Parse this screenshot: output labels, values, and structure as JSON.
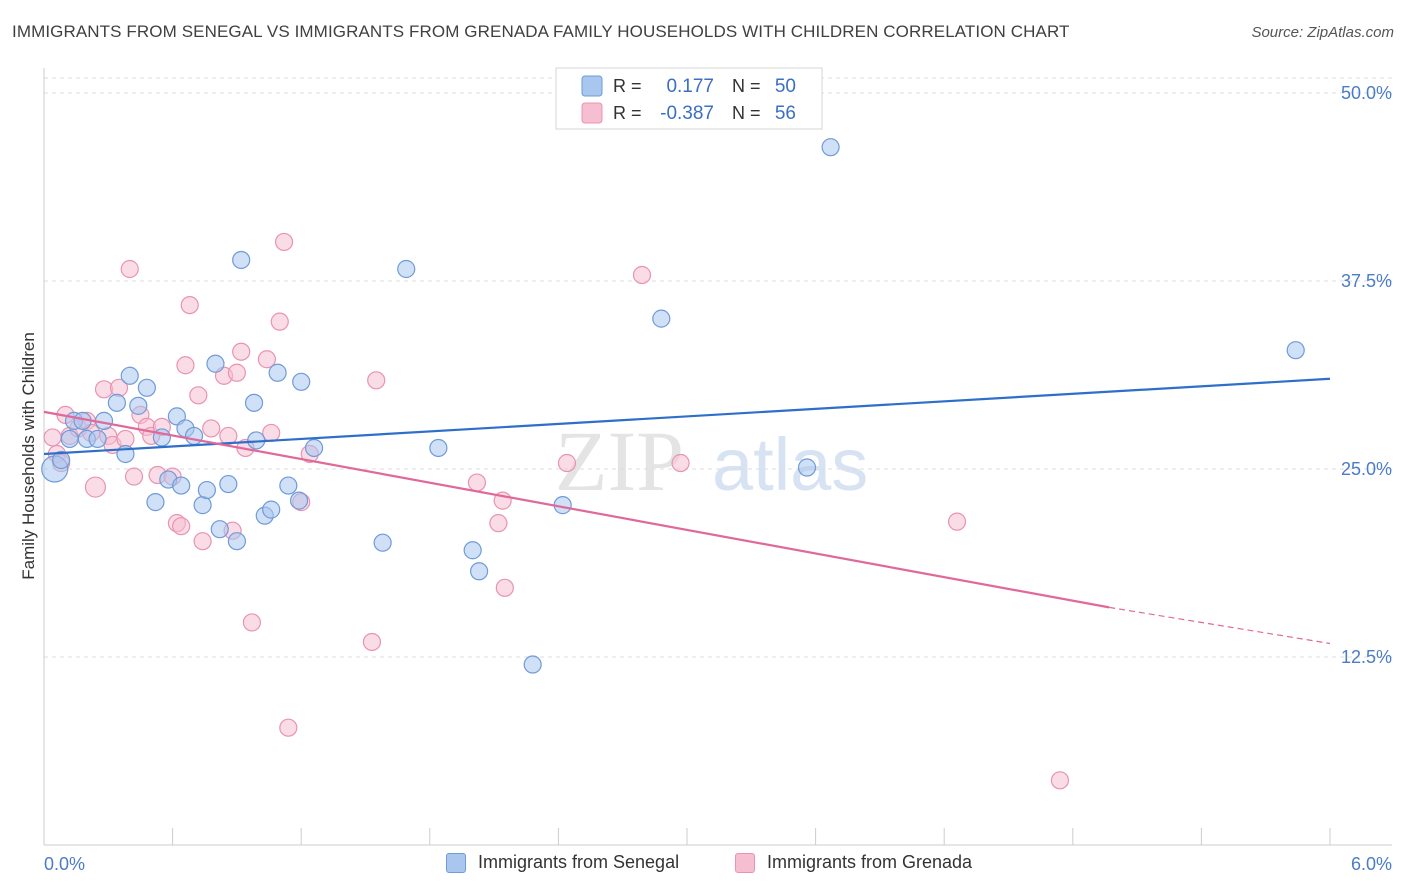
{
  "header": {
    "title": "IMMIGRANTS FROM SENEGAL VS IMMIGRANTS FROM GRENADA FAMILY HOUSEHOLDS WITH CHILDREN CORRELATION CHART",
    "source": "Source: ZipAtlas.com"
  },
  "colors": {
    "senegal_fill": "#a9c6ee",
    "senegal_stroke": "#6f9bd8",
    "senegal_line": "#2e6fc9",
    "grenada_fill": "#f6bfd1",
    "grenada_stroke": "#e993b1",
    "grenada_line": "#e0699a",
    "tick_label": "#4a7cc7",
    "grid": "#dddddd"
  },
  "legend": {
    "rows": [
      {
        "r_label": "R =",
        "r_value": "0.177",
        "n_label": "N =",
        "n_value": "50"
      },
      {
        "r_label": "R =",
        "r_value": "-0.387",
        "n_label": "N =",
        "n_value": "56"
      }
    ]
  },
  "watermark": {
    "zip": "ZIP",
    "atlas": "atlas"
  },
  "chart_data": {
    "type": "scatter",
    "title": "IMMIGRANTS FROM SENEGAL VS IMMIGRANTS FROM GRENADA FAMILY HOUSEHOLDS WITH CHILDREN CORRELATION CHART",
    "xlabel": "",
    "ylabel": "Family Households with Children",
    "xlim": [
      0.0,
      6.0
    ],
    "ylim": [
      0.0,
      51.0
    ],
    "x_tick_labels": [
      "0.0%",
      "6.0%"
    ],
    "y_ticks": [
      12.5,
      25.0,
      37.5,
      50.0
    ],
    "y_tick_labels": [
      "12.5%",
      "25.0%",
      "37.5%",
      "50.0%"
    ],
    "grid": true,
    "legend_position": "top-center",
    "series": [
      {
        "name": "Immigrants from Senegal",
        "R": 0.177,
        "N": 50,
        "trend": {
          "x": [
            0.0,
            6.0
          ],
          "y": [
            26.0,
            31.0
          ]
        },
        "points": [
          {
            "x": 0.05,
            "y": 25.0
          },
          {
            "x": 0.08,
            "y": 25.6
          },
          {
            "x": 0.12,
            "y": 27.0
          },
          {
            "x": 0.14,
            "y": 28.2
          },
          {
            "x": 0.18,
            "y": 28.2
          },
          {
            "x": 0.2,
            "y": 27.0
          },
          {
            "x": 0.25,
            "y": 27.0
          },
          {
            "x": 0.28,
            "y": 28.2
          },
          {
            "x": 0.34,
            "y": 29.4
          },
          {
            "x": 0.38,
            "y": 26.0
          },
          {
            "x": 0.4,
            "y": 31.2
          },
          {
            "x": 0.44,
            "y": 29.2
          },
          {
            "x": 0.48,
            "y": 30.4
          },
          {
            "x": 0.52,
            "y": 22.8
          },
          {
            "x": 0.55,
            "y": 27.1
          },
          {
            "x": 0.58,
            "y": 24.3
          },
          {
            "x": 0.62,
            "y": 28.5
          },
          {
            "x": 0.64,
            "y": 23.9
          },
          {
            "x": 0.66,
            "y": 27.7
          },
          {
            "x": 0.7,
            "y": 27.2
          },
          {
            "x": 0.74,
            "y": 22.6
          },
          {
            "x": 0.76,
            "y": 23.6
          },
          {
            "x": 0.8,
            "y": 32.0
          },
          {
            "x": 0.82,
            "y": 21.0
          },
          {
            "x": 0.86,
            "y": 24.0
          },
          {
            "x": 0.9,
            "y": 20.2
          },
          {
            "x": 0.92,
            "y": 38.9
          },
          {
            "x": 0.98,
            "y": 29.4
          },
          {
            "x": 0.99,
            "y": 26.9
          },
          {
            "x": 1.03,
            "y": 21.9
          },
          {
            "x": 1.06,
            "y": 22.3
          },
          {
            "x": 1.09,
            "y": 31.4
          },
          {
            "x": 1.14,
            "y": 23.9
          },
          {
            "x": 1.19,
            "y": 22.9
          },
          {
            "x": 1.2,
            "y": 30.8
          },
          {
            "x": 1.26,
            "y": 26.4
          },
          {
            "x": 1.58,
            "y": 20.1
          },
          {
            "x": 1.69,
            "y": 38.3
          },
          {
            "x": 1.84,
            "y": 26.4
          },
          {
            "x": 2.0,
            "y": 19.6
          },
          {
            "x": 2.03,
            "y": 18.2
          },
          {
            "x": 2.28,
            "y": 12.0
          },
          {
            "x": 2.42,
            "y": 22.6
          },
          {
            "x": 2.88,
            "y": 35.0
          },
          {
            "x": 3.56,
            "y": 25.1
          },
          {
            "x": 3.67,
            "y": 46.4
          },
          {
            "x": 5.84,
            "y": 32.9
          }
        ]
      },
      {
        "name": "Immigrants from Grenada",
        "R": -0.387,
        "N": 56,
        "trend": {
          "x": [
            0.0,
            4.97
          ],
          "y": [
            28.8,
            15.8
          ]
        },
        "trend_dashed": {
          "x": [
            4.97,
            6.0
          ],
          "y": [
            15.8,
            13.4
          ]
        },
        "points": [
          {
            "x": 0.04,
            "y": 27.1
          },
          {
            "x": 0.06,
            "y": 26.0
          },
          {
            "x": 0.08,
            "y": 25.4
          },
          {
            "x": 0.1,
            "y": 28.6
          },
          {
            "x": 0.12,
            "y": 27.2
          },
          {
            "x": 0.16,
            "y": 27.7
          },
          {
            "x": 0.2,
            "y": 28.2
          },
          {
            "x": 0.22,
            "y": 27.4
          },
          {
            "x": 0.24,
            "y": 23.8
          },
          {
            "x": 0.28,
            "y": 30.3
          },
          {
            "x": 0.3,
            "y": 27.2
          },
          {
            "x": 0.32,
            "y": 26.6
          },
          {
            "x": 0.35,
            "y": 30.4
          },
          {
            "x": 0.38,
            "y": 27.0
          },
          {
            "x": 0.4,
            "y": 38.3
          },
          {
            "x": 0.42,
            "y": 24.5
          },
          {
            "x": 0.45,
            "y": 28.6
          },
          {
            "x": 0.48,
            "y": 27.8
          },
          {
            "x": 0.5,
            "y": 27.2
          },
          {
            "x": 0.53,
            "y": 24.6
          },
          {
            "x": 0.55,
            "y": 27.8
          },
          {
            "x": 0.6,
            "y": 24.5
          },
          {
            "x": 0.62,
            "y": 21.4
          },
          {
            "x": 0.64,
            "y": 21.2
          },
          {
            "x": 0.66,
            "y": 31.9
          },
          {
            "x": 0.68,
            "y": 35.9
          },
          {
            "x": 0.72,
            "y": 29.9
          },
          {
            "x": 0.74,
            "y": 20.2
          },
          {
            "x": 0.78,
            "y": 27.7
          },
          {
            "x": 0.84,
            "y": 31.2
          },
          {
            "x": 0.86,
            "y": 27.2
          },
          {
            "x": 0.88,
            "y": 20.9
          },
          {
            "x": 0.9,
            "y": 31.4
          },
          {
            "x": 0.92,
            "y": 32.8
          },
          {
            "x": 0.94,
            "y": 26.4
          },
          {
            "x": 0.97,
            "y": 14.8
          },
          {
            "x": 1.04,
            "y": 32.3
          },
          {
            "x": 1.06,
            "y": 27.4
          },
          {
            "x": 1.1,
            "y": 34.8
          },
          {
            "x": 1.12,
            "y": 40.1
          },
          {
            "x": 1.14,
            "y": 7.8
          },
          {
            "x": 1.2,
            "y": 22.8
          },
          {
            "x": 1.24,
            "y": 26.0
          },
          {
            "x": 1.53,
            "y": 13.5
          },
          {
            "x": 1.55,
            "y": 30.9
          },
          {
            "x": 2.02,
            "y": 24.1
          },
          {
            "x": 2.12,
            "y": 21.4
          },
          {
            "x": 2.14,
            "y": 22.9
          },
          {
            "x": 2.15,
            "y": 17.1
          },
          {
            "x": 2.44,
            "y": 25.4
          },
          {
            "x": 2.79,
            "y": 37.9
          },
          {
            "x": 2.97,
            "y": 25.4
          },
          {
            "x": 4.26,
            "y": 21.5
          },
          {
            "x": 4.74,
            "y": 4.3
          }
        ]
      }
    ]
  },
  "bottom_legend": {
    "senegal_label": "Immigrants from Senegal",
    "grenada_label": "Immigrants from Grenada"
  }
}
